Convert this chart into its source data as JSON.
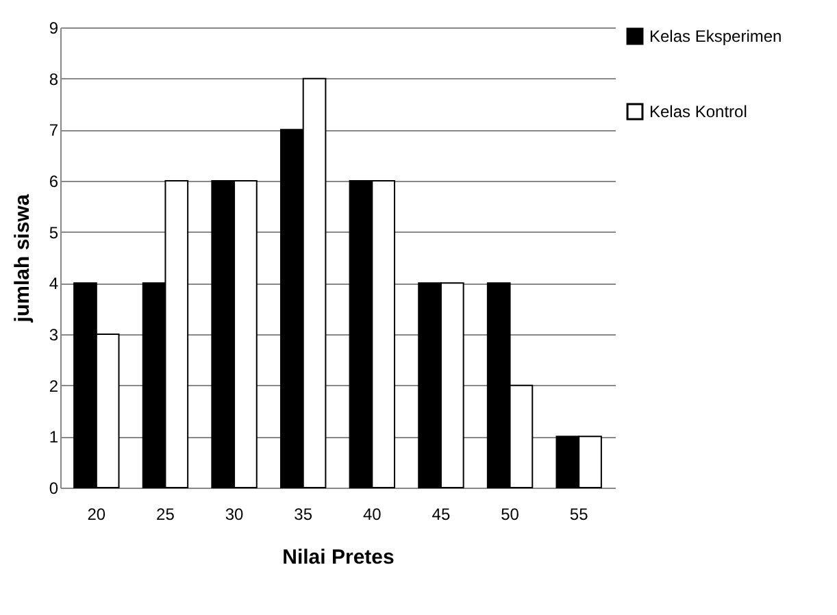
{
  "chart_data": {
    "type": "bar",
    "xlabel": "Nilai Pretes",
    "ylabel": "jumlah siswa",
    "categories": [
      "20",
      "25",
      "30",
      "35",
      "40",
      "45",
      "50",
      "55"
    ],
    "series": [
      {
        "name": "Kelas Eksperimen",
        "color": "#000000",
        "values": [
          4,
          4,
          6,
          7,
          6,
          4,
          4,
          1
        ]
      },
      {
        "name": "Kelas Kontrol",
        "color": "#ffffff",
        "values": [
          3,
          6,
          6,
          8,
          6,
          4,
          2,
          1
        ]
      }
    ],
    "ylim": [
      0,
      9
    ],
    "yticks": [
      0,
      1,
      2,
      3,
      4,
      5,
      6,
      7,
      8,
      9
    ],
    "grid": "y",
    "legend": "right"
  }
}
